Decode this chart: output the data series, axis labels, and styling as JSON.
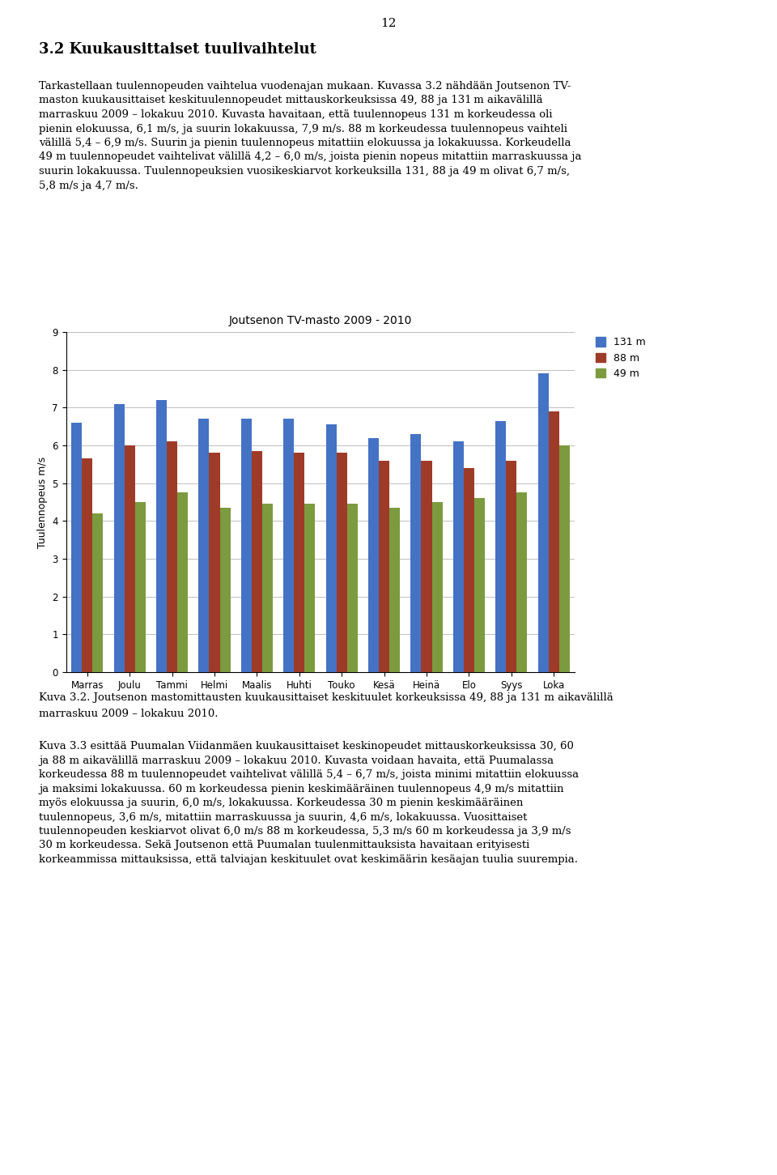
{
  "title": "Joutsenon TV-masto 2009 - 2010",
  "ylabel": "Tuulennopeus m/s",
  "categories": [
    "Marras",
    "Joulu",
    "Tammi",
    "Helmi",
    "Maalis",
    "Huhti",
    "Touko",
    "Kesä",
    "Heinä",
    "Elo",
    "Syys",
    "Loka"
  ],
  "series": {
    "131 m": [
      6.6,
      7.1,
      7.2,
      6.7,
      6.7,
      6.7,
      6.55,
      6.2,
      6.3,
      6.1,
      6.65,
      7.9
    ],
    "88 m": [
      5.65,
      6.0,
      6.1,
      5.8,
      5.85,
      5.8,
      5.8,
      5.6,
      5.6,
      5.4,
      5.6,
      6.9
    ],
    "49 m": [
      4.2,
      4.5,
      4.75,
      4.35,
      4.45,
      4.45,
      4.45,
      4.35,
      4.5,
      4.6,
      4.75,
      6.0
    ]
  },
  "colors": {
    "131 m": "#4472C4",
    "88 m": "#9E3B28",
    "49 m": "#7B9B3E"
  },
  "ylim": [
    0,
    9
  ],
  "yticks": [
    0,
    1,
    2,
    3,
    4,
    5,
    6,
    7,
    8,
    9
  ],
  "bar_width": 0.25,
  "legend_labels": [
    "131 m",
    "88 m",
    "49 m"
  ],
  "title_fontsize": 10,
  "axis_fontsize": 9,
  "tick_fontsize": 8.5,
  "legend_fontsize": 9,
  "figure_width": 9.6,
  "figure_height": 14.51,
  "background_color": "#FFFFFF",
  "grid_color": "#BEBEBE",
  "page_number": "12",
  "section_heading": "3.2 Kuukausittaiset tuulivaihtelut",
  "para1_line1": "Tarkastellaan tuulennopeuden vaihtelua vuodenajan mukaan. Kuvassa 3.2 nähdään Joutsenon TV-",
  "para1_line2": "maston kuukausittaiset keskituulennopeudet mittauskorkeuksissa 49, 88 ja 131 m aikavälillä",
  "para1_line3": "marraskuu 2009 – lokakuu 2010. Kuvasta havaitaan, että tuulennopeus 131 m korkeudessa oli",
  "para1_line4": "pienin elokuussa, 6,1 m/s, ja suurin lokakuussa, 7,9 m/s. 88 m korkeudessa tuulennopeus vaihteli",
  "para1_line5": "välillä 5,4 – 6,9 m/s. Suurin ja pienin tuulennopeus mitattiin elokuussa ja lokakuussa. Korkeudella",
  "para1_line6": "49 m tuulennopeudet vaihtelivat välillä 4,2 – 6,0 m/s, joista pienin nopeus mitattiin marraskuussa ja",
  "para1_line7": "suurin lokakuussa. Tuulennopeuksien vuosikeskiarvot korkeuksilla 131, 88 ja 49 m olivat 6,7 m/s,",
  "para1_line8": "5,8 m/s ja 4,7 m/s.",
  "caption": "Kuva 3.2. Joutsenon mastomittausten kuukausittaiset keskituulet korkeuksissa 49, 88 ja 131 m aikavälillä",
  "caption2": "marraskuu 2009 – lokakuu 2010.",
  "para2_line1": "Kuva 3.3 esittää Puumalan Viidanmäen kuukausittaiset keskinopeudet mittauskorkeuksissa 30, 60",
  "para2_line2": "ja 88 m aikavälillä marraskuu 2009 – lokakuu 2010. Kuvasta voidaan havaita, että Puumalassa",
  "para2_line3": "korkeudessa 88 m tuulennopeudet vaihtelivat välillä 5,4 – 6,7 m/s, joista minimi mitattiin elokuussa",
  "para2_line4": "ja maksimi lokakuussa. 60 m korkeudessa pienin keskimääräinen tuulennopeus 4,9 m/s mitattiin",
  "para2_line5": "myös elokuussa ja suurin, 6,0 m/s, lokakuussa. Korkeudessa 30 m pienin keskimääräinen",
  "para2_line6": "tuulennopeus, 3,6 m/s, mitattiin marraskuussa ja suurin, 4,6 m/s, lokakuussa. Vuosittaiset",
  "para2_line7": "tuulennopeuden keskiarvot olivat 6,0 m/s 88 m korkeudessa, 5,3 m/s 60 m korkeudessa ja 3,9 m/s",
  "para2_line8": "30 m korkeudessa. Sekä Joutsenon että Puumalan tuulenmittauksista havaitaan erityisesti",
  "para2_line9": "korkeammissa mittauksissa, että talviajan keskituulet ovat keskimäärin kesäajan tuulia suurempia."
}
